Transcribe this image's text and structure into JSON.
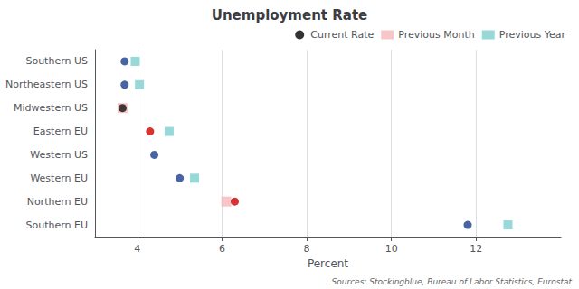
{
  "chart_data": {
    "type": "scatter",
    "title": "Unemployment Rate",
    "xlabel": "Percent",
    "annotations": [
      "Sources: Stockingblue, Bureau of Labor Statistics, Eurostat"
    ],
    "categories": [
      "Southern US",
      "Northeastern US",
      "Midwestern US",
      "Eastern EU",
      "Western US",
      "Western EU",
      "Northern EU",
      "Southern EU"
    ],
    "xlim": [
      3.0,
      14.0
    ],
    "xticks": [
      4,
      6,
      8,
      10,
      12
    ],
    "grid": true,
    "legend": "upper right",
    "series": [
      {
        "name": "Current Rate",
        "marker": "circle",
        "color": "black",
        "colors": [
          "#1a3d8c",
          "#1a3d8c",
          "#111111",
          "#cc0000",
          "#1a3d8c",
          "#1a3d8c",
          "#cc0000",
          "#1a3d8c"
        ],
        "values": [
          3.7,
          3.7,
          3.65,
          4.3,
          4.4,
          5.0,
          6.3,
          11.8
        ]
      },
      {
        "name": "Previous Month",
        "marker": "square",
        "color": "#f5b8bb",
        "values": [
          null,
          null,
          3.65,
          null,
          null,
          null,
          6.1,
          null
        ]
      },
      {
        "name": "Previous Year",
        "marker": "square",
        "color": "#7ecece",
        "values": [
          3.95,
          4.05,
          null,
          4.75,
          null,
          5.35,
          null,
          12.75
        ]
      }
    ]
  }
}
